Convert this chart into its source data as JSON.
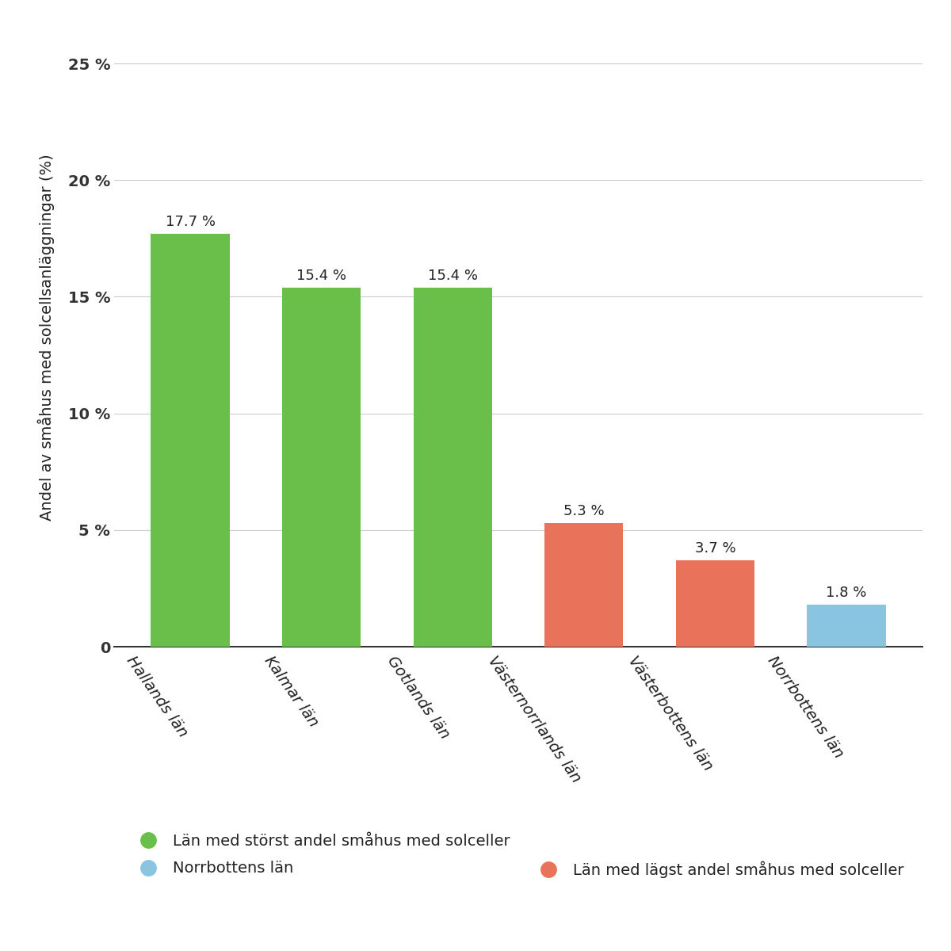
{
  "categories": [
    "Hallands län",
    "Kalmar län",
    "Gotlands län",
    "Västernorrlands län",
    "Västerbottens län",
    "Norrbottens län"
  ],
  "values": [
    17.7,
    15.4,
    15.4,
    5.3,
    3.7,
    1.8
  ],
  "bar_colors": [
    "#6abf4b",
    "#6abf4b",
    "#6abf4b",
    "#e8735a",
    "#e8735a",
    "#89c4e1"
  ],
  "value_labels": [
    "17.7 %",
    "15.4 %",
    "15.4 %",
    "5.3 %",
    "3.7 %",
    "1.8 %"
  ],
  "ylabel": "Andel av småhus med solcellsanläggningar (%)",
  "ytick_labels": [
    "0",
    "5 %",
    "10 %",
    "15 %",
    "20 %",
    "25 %"
  ],
  "ytick_values": [
    0,
    5,
    10,
    15,
    20,
    25
  ],
  "ylim": [
    0,
    26.5
  ],
  "legend_row1": [
    {
      "label": "Län med störst andel småhus med solceller",
      "color": "#6abf4b"
    },
    {
      "label": "Norrbottens län",
      "color": "#89c4e1"
    }
  ],
  "legend_row2": [
    {
      "label": "Län med lägst andel småhus med solceller",
      "color": "#e8735a"
    }
  ],
  "background_color": "#ffffff",
  "grid_color": "#cccccc",
  "bar_width": 0.6,
  "label_fontsize": 14,
  "tick_fontsize": 14,
  "annotation_fontsize": 13,
  "legend_fontsize": 14,
  "ylabel_fontsize": 14
}
